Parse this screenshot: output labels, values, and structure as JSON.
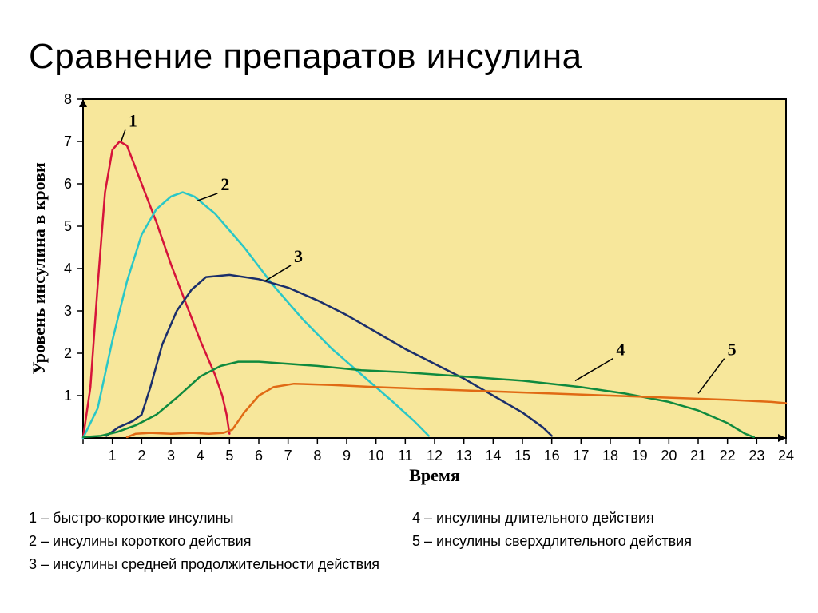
{
  "title": "Сравнение препаратов инсулина",
  "chart": {
    "type": "line",
    "plot_bg": "#f7e79b",
    "page_bg": "#ffffff",
    "frame_color": "#000000",
    "x": {
      "label": "Время",
      "min": 0,
      "max": 24,
      "ticks": [
        0,
        1,
        2,
        3,
        4,
        5,
        6,
        7,
        8,
        9,
        10,
        11,
        12,
        13,
        14,
        15,
        16,
        17,
        18,
        19,
        20,
        21,
        22,
        23,
        24
      ],
      "tick_labels": [
        "",
        "1",
        "2",
        "3",
        "4",
        "5",
        "6",
        "7",
        "8",
        "9",
        "10",
        "11",
        "12",
        "13",
        "14",
        "15",
        "16",
        "17",
        "18",
        "19",
        "20",
        "21",
        "22",
        "23",
        "24"
      ],
      "tick_len": 8
    },
    "y": {
      "label": "Уровень инсулина в крови",
      "min": 0,
      "max": 8,
      "ticks": [
        1,
        2,
        3,
        4,
        5,
        6,
        7,
        8
      ],
      "tick_len": 8
    },
    "line_width": 2.5,
    "series": [
      {
        "id": "1",
        "color": "#d6143a",
        "label_xy": [
          1.55,
          7.35
        ],
        "leader_to": [
          1.3,
          7.0
        ],
        "points": [
          [
            0,
            0
          ],
          [
            0.25,
            1.2
          ],
          [
            0.5,
            3.6
          ],
          [
            0.75,
            5.8
          ],
          [
            1.0,
            6.8
          ],
          [
            1.25,
            7.0
          ],
          [
            1.5,
            6.9
          ],
          [
            2.0,
            6.0
          ],
          [
            2.5,
            5.1
          ],
          [
            3.0,
            4.1
          ],
          [
            3.5,
            3.2
          ],
          [
            4.0,
            2.3
          ],
          [
            4.5,
            1.5
          ],
          [
            4.75,
            1.0
          ],
          [
            4.9,
            0.55
          ],
          [
            5.0,
            0.1
          ]
        ]
      },
      {
        "id": "2",
        "color": "#29c7c7",
        "label_xy": [
          4.7,
          5.85
        ],
        "leader_to": [
          3.9,
          5.6
        ],
        "points": [
          [
            0,
            0
          ],
          [
            0.5,
            0.7
          ],
          [
            1.0,
            2.3
          ],
          [
            1.5,
            3.7
          ],
          [
            2.0,
            4.8
          ],
          [
            2.5,
            5.4
          ],
          [
            3.0,
            5.7
          ],
          [
            3.4,
            5.8
          ],
          [
            3.8,
            5.7
          ],
          [
            4.5,
            5.3
          ],
          [
            5.5,
            4.5
          ],
          [
            6.5,
            3.6
          ],
          [
            7.5,
            2.8
          ],
          [
            8.5,
            2.1
          ],
          [
            9.5,
            1.5
          ],
          [
            10.5,
            0.9
          ],
          [
            11.3,
            0.4
          ],
          [
            11.8,
            0.05
          ]
        ]
      },
      {
        "id": "3",
        "color": "#1b2f6b",
        "label_xy": [
          7.2,
          4.15
        ],
        "leader_to": [
          6.2,
          3.7
        ],
        "points": [
          [
            0.8,
            0.05
          ],
          [
            1.2,
            0.25
          ],
          [
            1.7,
            0.4
          ],
          [
            2.0,
            0.55
          ],
          [
            2.3,
            1.2
          ],
          [
            2.7,
            2.2
          ],
          [
            3.2,
            3.0
          ],
          [
            3.7,
            3.5
          ],
          [
            4.2,
            3.8
          ],
          [
            5.0,
            3.85
          ],
          [
            6.0,
            3.75
          ],
          [
            7.0,
            3.55
          ],
          [
            8.0,
            3.25
          ],
          [
            9.0,
            2.9
          ],
          [
            10.0,
            2.5
          ],
          [
            11.0,
            2.1
          ],
          [
            12.0,
            1.75
          ],
          [
            13.0,
            1.4
          ],
          [
            14.0,
            1.0
          ],
          [
            15.0,
            0.6
          ],
          [
            15.7,
            0.25
          ],
          [
            16.0,
            0.05
          ]
        ]
      },
      {
        "id": "4",
        "color": "#0f8a3e",
        "label_xy": [
          18.2,
          1.95
        ],
        "leader_to": [
          16.8,
          1.35
        ],
        "points": [
          [
            0,
            0.02
          ],
          [
            0.6,
            0.05
          ],
          [
            1.2,
            0.15
          ],
          [
            1.8,
            0.3
          ],
          [
            2.5,
            0.55
          ],
          [
            3.2,
            0.95
          ],
          [
            4.0,
            1.45
          ],
          [
            4.7,
            1.7
          ],
          [
            5.3,
            1.8
          ],
          [
            6.0,
            1.8
          ],
          [
            7.0,
            1.75
          ],
          [
            8.0,
            1.7
          ],
          [
            9.5,
            1.6
          ],
          [
            11.0,
            1.55
          ],
          [
            13.0,
            1.45
          ],
          [
            15.0,
            1.35
          ],
          [
            17.0,
            1.2
          ],
          [
            18.5,
            1.05
          ],
          [
            20.0,
            0.85
          ],
          [
            21.0,
            0.65
          ],
          [
            22.0,
            0.35
          ],
          [
            22.6,
            0.1
          ],
          [
            22.9,
            0.02
          ]
        ]
      },
      {
        "id": "5",
        "color": "#e06a14",
        "label_xy": [
          22.0,
          1.95
        ],
        "leader_to": [
          21.0,
          1.05
        ],
        "points": [
          [
            1.5,
            0.02
          ],
          [
            1.8,
            0.1
          ],
          [
            2.3,
            0.12
          ],
          [
            3.0,
            0.1
          ],
          [
            3.7,
            0.12
          ],
          [
            4.3,
            0.1
          ],
          [
            4.8,
            0.12
          ],
          [
            5.1,
            0.2
          ],
          [
            5.5,
            0.6
          ],
          [
            6.0,
            1.0
          ],
          [
            6.5,
            1.2
          ],
          [
            7.2,
            1.28
          ],
          [
            8.5,
            1.25
          ],
          [
            10.0,
            1.2
          ],
          [
            12.0,
            1.15
          ],
          [
            14.0,
            1.1
          ],
          [
            16.0,
            1.05
          ],
          [
            18.0,
            1.0
          ],
          [
            20.0,
            0.95
          ],
          [
            22.0,
            0.9
          ],
          [
            23.5,
            0.85
          ],
          [
            24.0,
            0.82
          ]
        ]
      }
    ]
  },
  "legend": {
    "col1": {
      "l1": "1 – быстро-короткие инсулины",
      "l2": "2 – инсулины короткого действия",
      "l3": "3 – инсулины средней продолжительности действия"
    },
    "col2": {
      "l4": "4 – инсулины длительного действия",
      "l5": "5 – инсулины сверхдлительного действия"
    }
  }
}
